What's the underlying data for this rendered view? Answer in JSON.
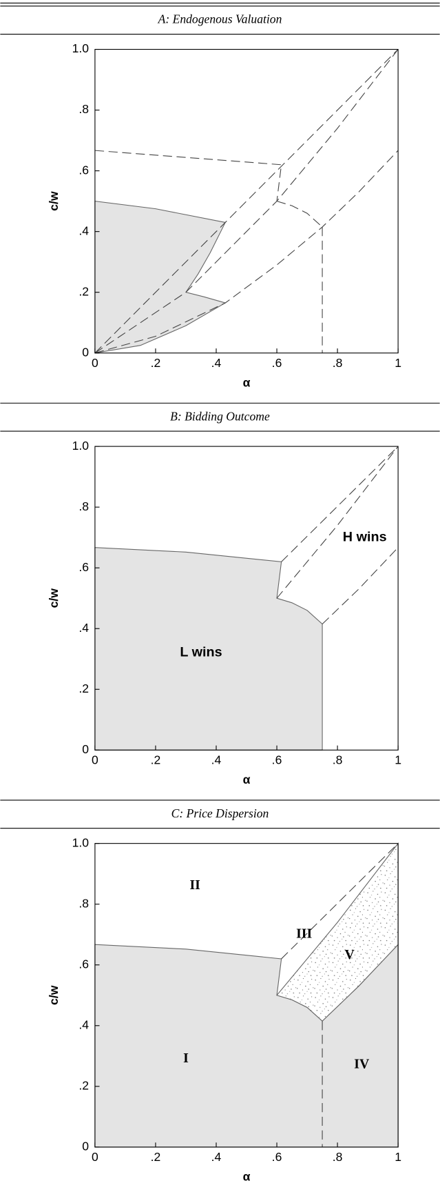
{
  "chart_data": [
    {
      "type": "line",
      "title": "A: Endogenous Valuation",
      "x_label": "α",
      "y_label": "c/w",
      "xlim": [
        0,
        1
      ],
      "ylim": [
        0,
        1
      ],
      "xticks": [
        0,
        {
          "value": 0.2,
          "label": ".2"
        },
        {
          "value": 0.4,
          "label": ".4"
        },
        {
          "value": 0.6,
          "label": ".6"
        },
        {
          "value": 0.8,
          "label": ".8"
        },
        1
      ],
      "yticks": [
        0,
        {
          "value": 0.2,
          "label": ".2"
        },
        {
          "value": 0.4,
          "label": ".4"
        },
        {
          "value": 0.6,
          "label": ".6"
        },
        {
          "value": 0.8,
          "label": ".8"
        },
        {
          "value": 1,
          "label": "1.0"
        }
      ],
      "regions": [
        {
          "color": "#e4e4e4",
          "x": [
            0,
            0,
            0.2,
            0.43,
            0.38,
            0.34,
            0.3,
            0.36,
            0.43,
            0.3,
            0.15,
            0
          ],
          "values": [
            0,
            0.5,
            0.475,
            0.43,
            0.33,
            0.26,
            0.2,
            0.185,
            0.165,
            0.09,
            0.025,
            0
          ]
        }
      ],
      "series": [
        {
          "style": "dashed",
          "x": [
            0,
            0.615,
            0.6
          ],
          "values": [
            0.667,
            0.62,
            0.5
          ]
        },
        {
          "style": "dashed",
          "x": [
            0,
            1
          ],
          "values": [
            0,
            1
          ]
        },
        {
          "style": "dashed",
          "x": [
            0,
            0.3,
            0.6,
            0.8,
            1
          ],
          "values": [
            0,
            0.2,
            0.5,
            0.74,
            1
          ]
        },
        {
          "style": "dashed",
          "x": [
            0,
            0.2,
            0.43,
            0.6,
            0.75,
            0.87,
            1
          ],
          "values": [
            0,
            0.055,
            0.165,
            0.29,
            0.415,
            0.53,
            0.667
          ]
        },
        {
          "style": "dashed",
          "x": [
            0.6,
            0.65,
            0.7,
            0.75
          ],
          "values": [
            0.5,
            0.485,
            0.46,
            0.415
          ]
        },
        {
          "style": "dashed",
          "x": [
            0.75,
            0.75
          ],
          "values": [
            0.415,
            0
          ]
        }
      ],
      "annotations": []
    },
    {
      "type": "line",
      "title": "B: Bidding Outcome",
      "x_label": "α",
      "y_label": "c/w",
      "xlim": [
        0,
        1
      ],
      "ylim": [
        0,
        1
      ],
      "xticks": [
        0,
        {
          "value": 0.2,
          "label": ".2"
        },
        {
          "value": 0.4,
          "label": ".4"
        },
        {
          "value": 0.6,
          "label": ".6"
        },
        {
          "value": 0.8,
          "label": ".8"
        },
        1
      ],
      "yticks": [
        0,
        {
          "value": 0.2,
          "label": ".2"
        },
        {
          "value": 0.4,
          "label": ".4"
        },
        {
          "value": 0.6,
          "label": ".6"
        },
        {
          "value": 0.8,
          "label": ".8"
        },
        {
          "value": 1,
          "label": "1.0"
        }
      ],
      "regions": [
        {
          "color": "#e4e4e4",
          "x": [
            0,
            0,
            0.3,
            0.615,
            0.6,
            0.65,
            0.7,
            0.75,
            0.75
          ],
          "values": [
            0,
            0.667,
            0.652,
            0.62,
            0.5,
            0.485,
            0.46,
            0.415,
            0
          ]
        }
      ],
      "series": [
        {
          "style": "dashed",
          "x": [
            0.615,
            1
          ],
          "values": [
            0.62,
            1
          ]
        },
        {
          "style": "dashed",
          "x": [
            0.6,
            0.8,
            1
          ],
          "values": [
            0.5,
            0.74,
            1
          ]
        },
        {
          "style": "dashed",
          "x": [
            0.75,
            0.87,
            1
          ],
          "values": [
            0.415,
            0.53,
            0.667
          ]
        }
      ],
      "annotations": [
        {
          "text": "L wins",
          "x": 0.35,
          "y": 0.32,
          "font": "sans"
        },
        {
          "text": "H wins",
          "x": 0.89,
          "y": 0.7,
          "font": "sans"
        }
      ]
    },
    {
      "type": "line",
      "title": "C: Price Dispersion",
      "x_label": "α",
      "y_label": "c/w",
      "xlim": [
        0,
        1
      ],
      "ylim": [
        0,
        1
      ],
      "xticks": [
        0,
        {
          "value": 0.2,
          "label": ".2"
        },
        {
          "value": 0.4,
          "label": ".4"
        },
        {
          "value": 0.6,
          "label": ".6"
        },
        {
          "value": 0.8,
          "label": ".8"
        },
        1
      ],
      "yticks": [
        0,
        {
          "value": 0.2,
          "label": ".2"
        },
        {
          "value": 0.4,
          "label": ".4"
        },
        {
          "value": 0.6,
          "label": ".6"
        },
        {
          "value": 0.8,
          "label": ".8"
        },
        {
          "value": 1,
          "label": "1.0"
        }
      ],
      "regions": [
        {
          "color": "#e4e4e4",
          "x": [
            0,
            0,
            0.3,
            0.615,
            0.6,
            0.65,
            0.7,
            0.75,
            0.87,
            1,
            1
          ],
          "values": [
            0,
            0.667,
            0.652,
            0.62,
            0.5,
            0.485,
            0.46,
            0.415,
            0.53,
            0.667,
            0
          ]
        },
        {
          "color": "#ffffff",
          "stipple": true,
          "x": [
            0.6,
            0.8,
            1,
            1,
            0.87,
            0.75,
            0.7,
            0.65
          ],
          "values": [
            0.5,
            0.74,
            1,
            0.667,
            0.53,
            0.415,
            0.46,
            0.485
          ]
        }
      ],
      "series": [
        {
          "style": "dashed",
          "x": [
            0.615,
            1
          ],
          "values": [
            0.62,
            1
          ]
        },
        {
          "style": "dashed",
          "x": [
            0.75,
            0.75
          ],
          "values": [
            0.415,
            0
          ]
        }
      ],
      "annotations": [
        {
          "text": "I",
          "x": 0.3,
          "y": 0.29,
          "font": "serif"
        },
        {
          "text": "II",
          "x": 0.33,
          "y": 0.86,
          "font": "serif"
        },
        {
          "text": "III",
          "x": 0.69,
          "y": 0.7,
          "font": "serif"
        },
        {
          "text": "IV",
          "x": 0.88,
          "y": 0.27,
          "font": "serif"
        },
        {
          "text": "V",
          "x": 0.84,
          "y": 0.63,
          "font": "serif"
        }
      ]
    }
  ]
}
